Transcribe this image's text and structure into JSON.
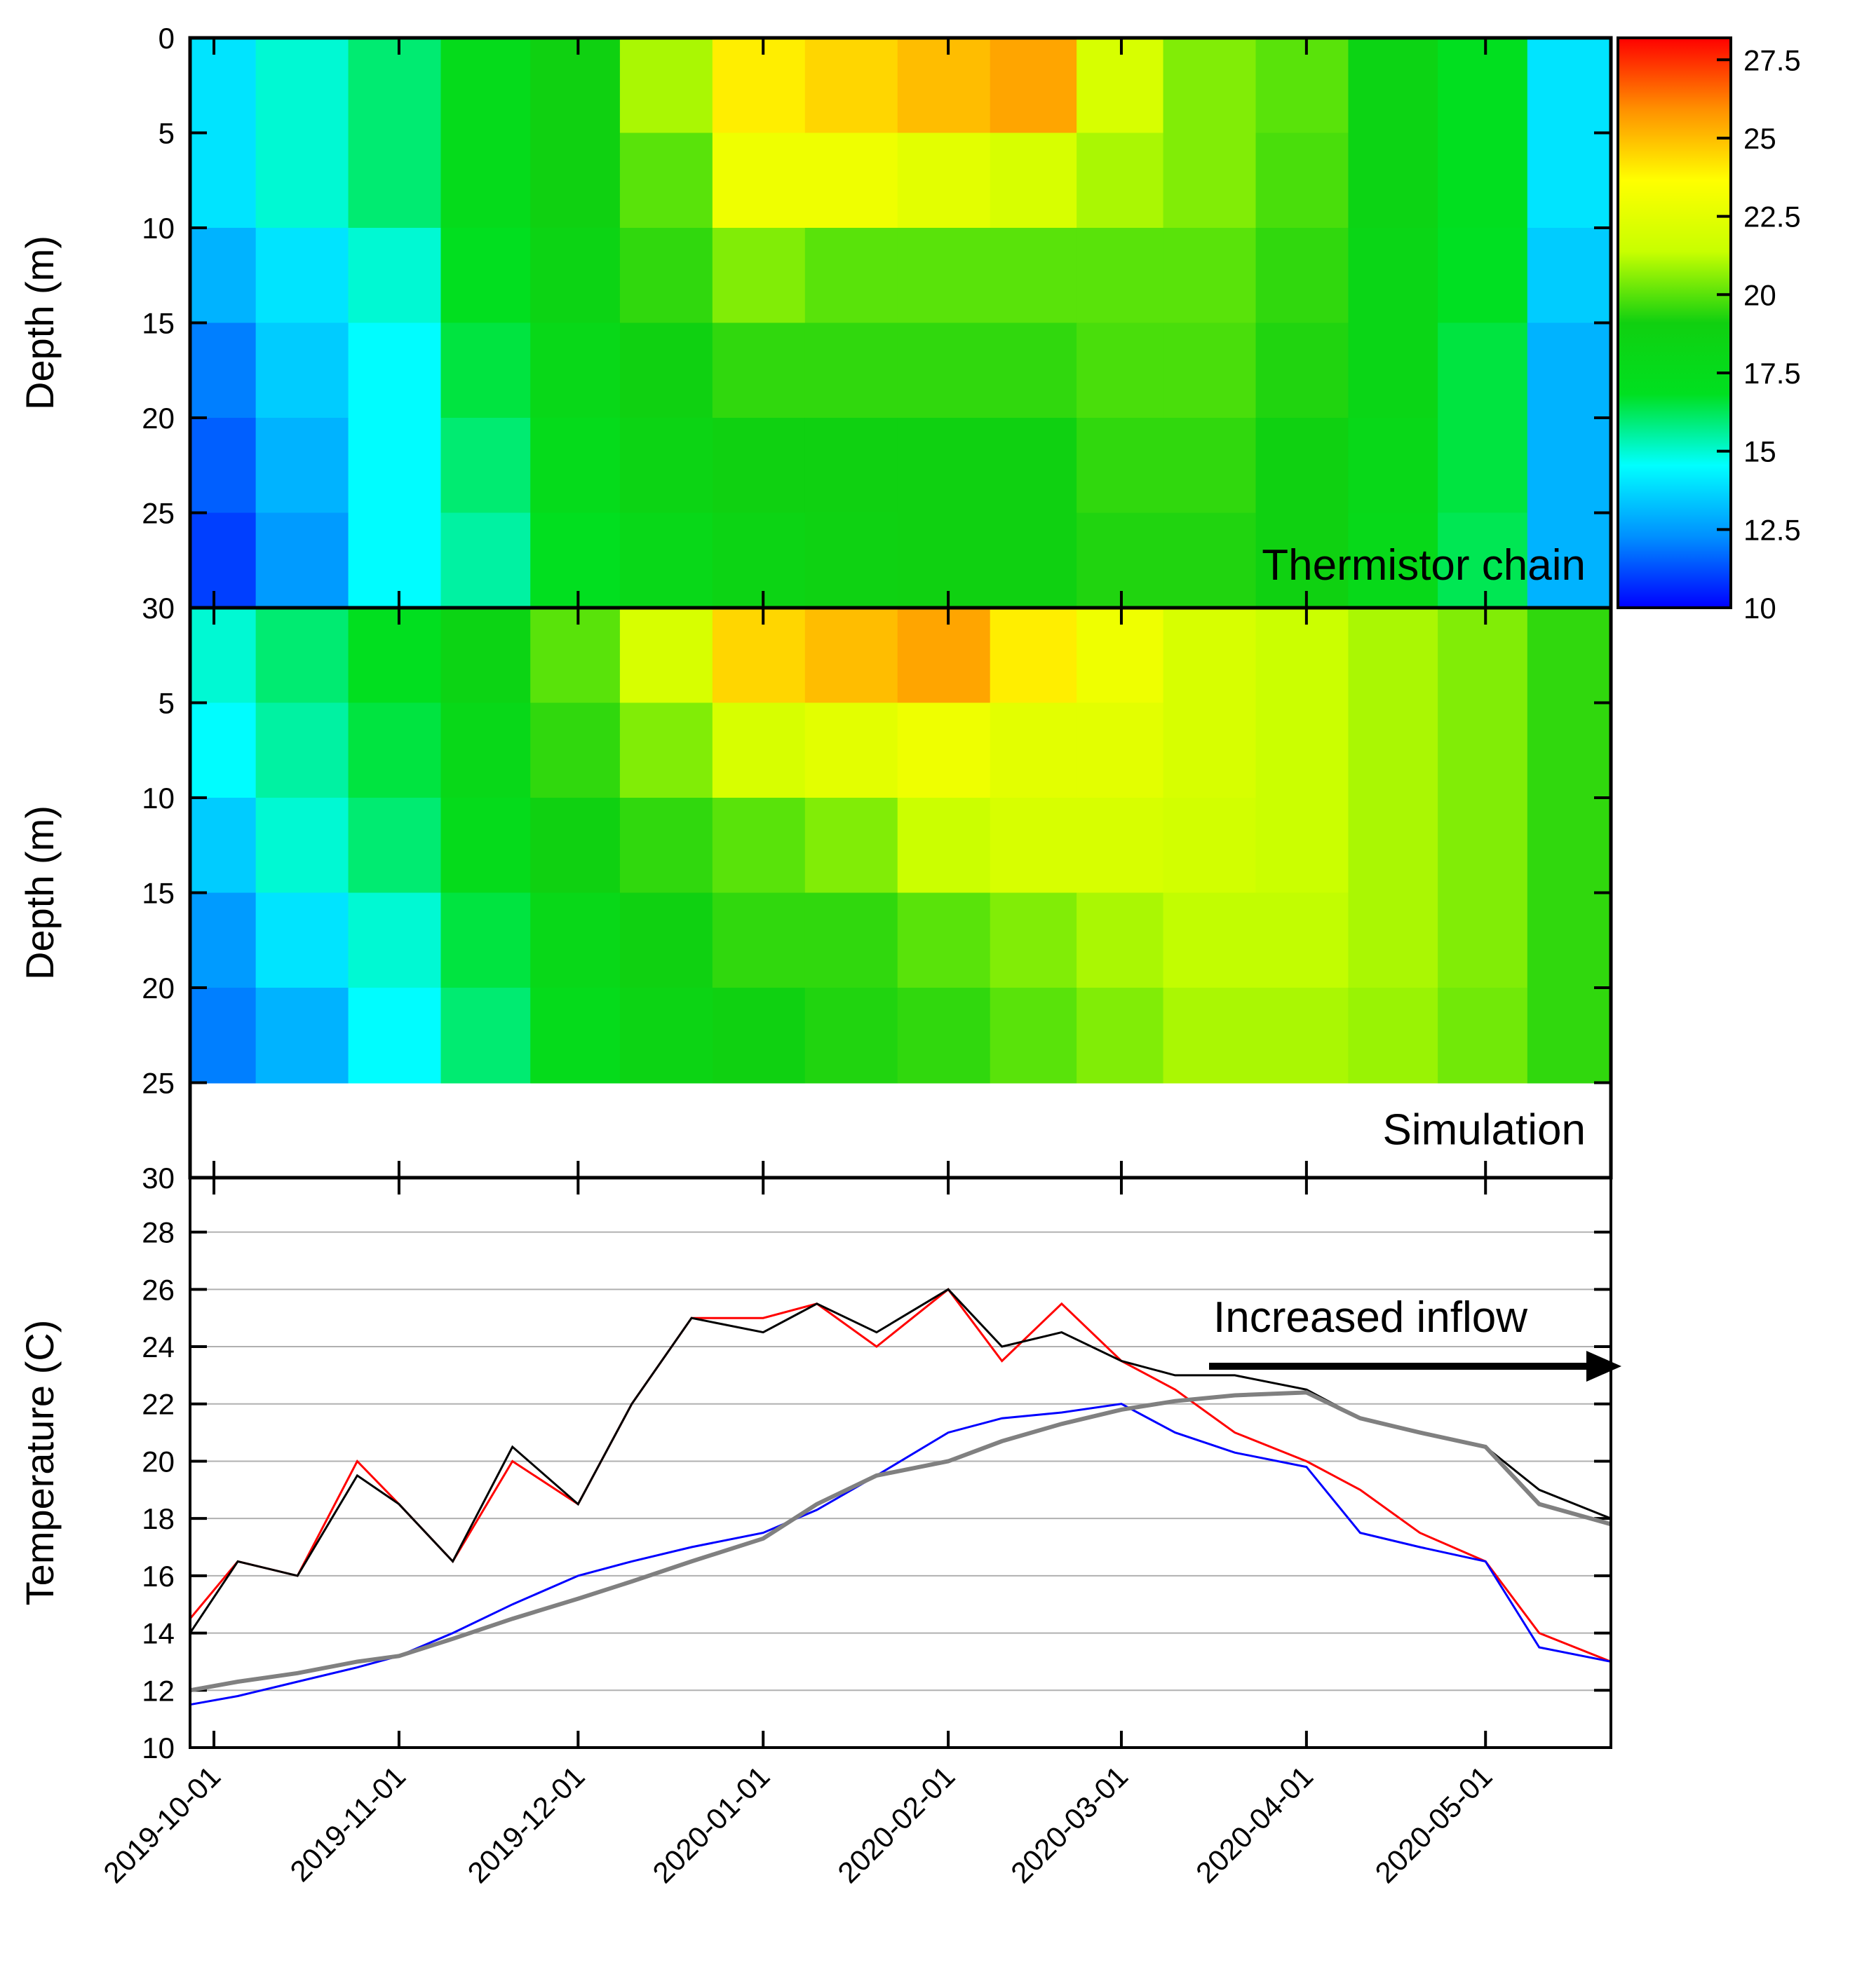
{
  "chart_data": [
    {
      "type": "heatmap",
      "y_label": "Depth (m)",
      "annotation": "Thermistor chain",
      "x": [
        "2019-10-01",
        "2019-10-15",
        "2019-11-01",
        "2019-11-15",
        "2019-12-01",
        "2019-12-15",
        "2020-01-01",
        "2020-01-15",
        "2020-02-01",
        "2020-02-15",
        "2020-03-01",
        "2020-03-15",
        "2020-04-01",
        "2020-04-15",
        "2020-05-01",
        "2020-05-15"
      ],
      "y": [
        2.5,
        7.5,
        12.5,
        17.5,
        22.5,
        27.5
      ],
      "z": [
        [
          14,
          15,
          16,
          17.5,
          19,
          21,
          24,
          24.5,
          25,
          25.5,
          22,
          20.5,
          20,
          18.5,
          17,
          14
        ],
        [
          14,
          15,
          16,
          17.5,
          19,
          20,
          23,
          23,
          22.5,
          22,
          21,
          20.5,
          19.8,
          18.5,
          17,
          14
        ],
        [
          13,
          14,
          15,
          17,
          18.5,
          19.5,
          20.5,
          20,
          20,
          20,
          20,
          20,
          19.5,
          18.3,
          16.8,
          13.5
        ],
        [
          12,
          13.5,
          14.5,
          16.5,
          18,
          19,
          19.5,
          19.5,
          19.5,
          19.5,
          19.8,
          19.8,
          19.3,
          18.2,
          16.5,
          13
        ],
        [
          11.5,
          13,
          14.5,
          16,
          17.5,
          18.5,
          19,
          19,
          19,
          19,
          19.5,
          19.5,
          19,
          18,
          16.5,
          13
        ],
        [
          11,
          12.5,
          14.5,
          15.5,
          17,
          18,
          18.5,
          18.8,
          19,
          19,
          19.3,
          19.3,
          19,
          17.8,
          16.3,
          13
        ]
      ],
      "xlim": [
        "2019-09-27",
        "2020-05-22"
      ],
      "xticks": [
        "2019-10-01",
        "2019-11-01",
        "2019-12-01",
        "2020-01-01",
        "2020-02-01",
        "2020-03-01",
        "2020-04-01",
        "2020-05-01"
      ],
      "ylim": [
        0,
        30
      ],
      "yticks": [
        0,
        5,
        10,
        15,
        20,
        25,
        30
      ],
      "zlim": [
        10,
        28.2
      ],
      "zticks": [
        10,
        12.5,
        15,
        17.5,
        20,
        22.5,
        25,
        27.5
      ],
      "colormap": [
        "#0000ff",
        "#0090ff",
        "#00ffff",
        "#00e020",
        "#10d010",
        "#c8ff00",
        "#ffff00",
        "#ff9000",
        "#ff0000"
      ]
    },
    {
      "type": "heatmap",
      "y_label": "Depth (m)",
      "annotation": "Simulation",
      "x": [
        "2019-10-01",
        "2019-10-15",
        "2019-11-01",
        "2019-11-15",
        "2019-12-01",
        "2019-12-15",
        "2020-01-01",
        "2020-01-15",
        "2020-02-01",
        "2020-02-15",
        "2020-03-01",
        "2020-03-15",
        "2020-04-01",
        "2020-04-15",
        "2020-05-01",
        "2020-05-15"
      ],
      "y": [
        2.5,
        7.5,
        12.5,
        17.5,
        22.5
      ],
      "z": [
        [
          15,
          16,
          17,
          18.5,
          20,
          22,
          24.5,
          25,
          25.5,
          24,
          23,
          22,
          21.5,
          21,
          20.5,
          19.5
        ],
        [
          14.5,
          15.5,
          16.5,
          18,
          19.5,
          20.5,
          22,
          22.5,
          23,
          22.5,
          22.5,
          22,
          21.5,
          21,
          20.5,
          19.5
        ],
        [
          13.5,
          15,
          16,
          17.5,
          19,
          19.5,
          20,
          20.5,
          21.5,
          22,
          22,
          21.8,
          21.5,
          21,
          20.5,
          19.5
        ],
        [
          12.5,
          14,
          15,
          16.5,
          18,
          19,
          19.5,
          19.5,
          20,
          20.5,
          21,
          21.3,
          21.3,
          21,
          20.5,
          19.5
        ],
        [
          12,
          13,
          14.5,
          16,
          17.5,
          18.5,
          19,
          19.3,
          19.5,
          20,
          20.5,
          21,
          21,
          20.8,
          20.3,
          19.5
        ]
      ],
      "xlim": [
        "2019-09-27",
        "2020-05-22"
      ],
      "xticks": [
        "2019-10-01",
        "2019-11-01",
        "2019-12-01",
        "2020-01-01",
        "2020-02-01",
        "2020-03-01",
        "2020-04-01",
        "2020-05-01"
      ],
      "ylim": [
        0,
        30
      ],
      "yticks": [
        5,
        10,
        15,
        20,
        25,
        30
      ],
      "zlim": [
        10,
        28.2
      ],
      "colormap": [
        "#0000ff",
        "#0090ff",
        "#00ffff",
        "#00e020",
        "#10d010",
        "#c8ff00",
        "#ffff00",
        "#ff9000",
        "#ff0000"
      ]
    },
    {
      "type": "line",
      "y_label": "Temperature (C)",
      "annotation": "Increased inflow",
      "x": [
        "2019-09-27",
        "2019-10-05",
        "2019-10-15",
        "2019-10-25",
        "2019-11-01",
        "2019-11-10",
        "2019-11-20",
        "2019-12-01",
        "2019-12-10",
        "2019-12-20",
        "2020-01-01",
        "2020-01-10",
        "2020-01-20",
        "2020-02-01",
        "2020-02-10",
        "2020-02-20",
        "2020-03-01",
        "2020-03-10",
        "2020-03-20",
        "2020-04-01",
        "2020-04-10",
        "2020-04-20",
        "2020-05-01",
        "2020-05-10",
        "2020-05-22"
      ],
      "series": [
        {
          "color": "#ff0000",
          "values": [
            14.5,
            16.5,
            16,
            20,
            18.5,
            16.5,
            20,
            18.5,
            22,
            25,
            25,
            25.5,
            24,
            26,
            23.5,
            25.5,
            23.5,
            22.5,
            21,
            20,
            19,
            17.5,
            16.5,
            14,
            13
          ]
        },
        {
          "color": "#000000",
          "values": [
            14,
            16.5,
            16,
            19.5,
            18.5,
            16.5,
            20.5,
            18.5,
            22,
            25,
            24.5,
            25.5,
            24.5,
            26,
            24,
            24.5,
            23.5,
            23,
            23,
            22.5,
            21.5,
            21,
            20.5,
            19,
            18
          ]
        },
        {
          "color": "#0000ff",
          "values": [
            11.5,
            11.8,
            12.3,
            12.8,
            13.2,
            14,
            15,
            16,
            16.5,
            17,
            17.5,
            18.3,
            19.5,
            21,
            21.5,
            21.7,
            22,
            21,
            20.3,
            19.8,
            17.5,
            17,
            16.5,
            13.5,
            13
          ]
        },
        {
          "color": "#808080",
          "values": [
            12,
            12.3,
            12.6,
            13,
            13.2,
            13.8,
            14.5,
            15.2,
            15.8,
            16.5,
            17.3,
            18.5,
            19.5,
            20,
            20.7,
            21.3,
            21.8,
            22.1,
            22.3,
            22.4,
            21.5,
            21,
            20.5,
            18.5,
            17.8
          ]
        }
      ],
      "xlim": [
        "2019-09-27",
        "2020-05-22"
      ],
      "xticks": [
        "2019-10-01",
        "2019-11-01",
        "2019-12-01",
        "2020-01-01",
        "2020-02-01",
        "2020-03-01",
        "2020-04-01",
        "2020-05-01"
      ],
      "ylim": [
        10,
        29.9
      ],
      "yticks": [
        10,
        12,
        14,
        16,
        18,
        20,
        22,
        24,
        26,
        28
      ],
      "grid": true
    }
  ]
}
